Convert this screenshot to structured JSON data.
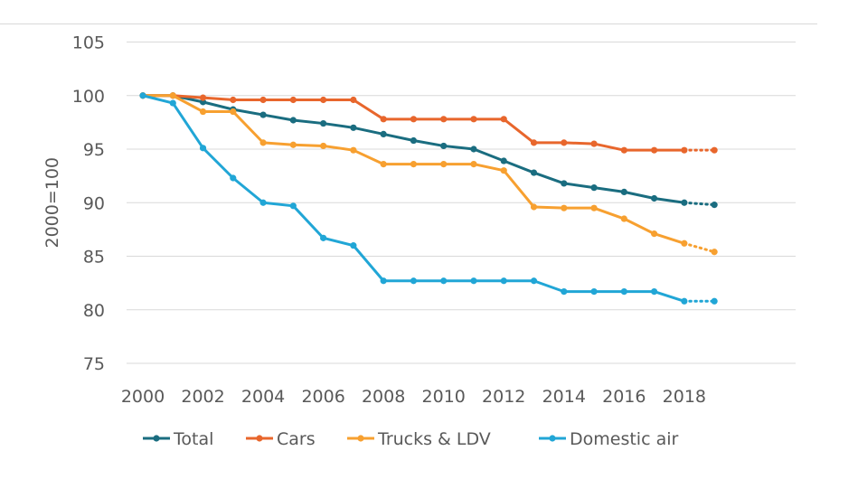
{
  "chart_data": {
    "type": "line",
    "title": "",
    "xlabel": "",
    "ylabel": "2000=100",
    "ylim": [
      75,
      105
    ],
    "yticks": [
      75,
      80,
      85,
      90,
      95,
      100,
      105
    ],
    "xlim": [
      2000,
      2019
    ],
    "xticks": [
      2000,
      2002,
      2004,
      2006,
      2008,
      2010,
      2012,
      2014,
      2016,
      2018
    ],
    "grid": "horizontal",
    "legend_position": "bottom",
    "x": [
      2000,
      2001,
      2002,
      2003,
      2004,
      2005,
      2006,
      2007,
      2008,
      2009,
      2010,
      2011,
      2012,
      2013,
      2014,
      2015,
      2016,
      2017,
      2018
    ],
    "projection_x": [
      2018,
      2019
    ],
    "series": [
      {
        "name": "Total",
        "color": "#1a6d80",
        "values": [
          100,
          100,
          99.4,
          98.7,
          98.2,
          97.7,
          97.4,
          97.0,
          96.4,
          95.8,
          95.3,
          95.0,
          93.9,
          92.8,
          91.8,
          91.4,
          91.0,
          90.4,
          90.0
        ],
        "projection": [
          90.0,
          89.8
        ]
      },
      {
        "name": "Cars",
        "color": "#e8662c",
        "values": [
          100,
          100,
          99.8,
          99.6,
          99.6,
          99.6,
          99.6,
          99.6,
          97.8,
          97.8,
          97.8,
          97.8,
          97.8,
          95.6,
          95.6,
          95.5,
          94.9,
          94.9,
          94.9
        ],
        "projection": [
          94.9,
          94.9
        ]
      },
      {
        "name": "Trucks & LDV",
        "color": "#f7a030",
        "values": [
          100,
          100,
          98.5,
          98.5,
          95.6,
          95.4,
          95.3,
          94.9,
          93.6,
          93.6,
          93.6,
          93.6,
          93.0,
          89.6,
          89.5,
          89.5,
          88.5,
          87.1,
          86.2
        ],
        "projection": [
          86.2,
          85.4
        ]
      },
      {
        "name": "Domestic air",
        "color": "#21a6d6",
        "values": [
          100,
          99.3,
          95.1,
          92.3,
          90.0,
          89.7,
          86.7,
          86.0,
          82.7,
          82.7,
          82.7,
          82.7,
          82.7,
          82.7,
          81.7,
          81.7,
          81.7,
          81.7,
          80.8
        ],
        "projection": [
          80.8,
          80.8
        ]
      }
    ]
  }
}
